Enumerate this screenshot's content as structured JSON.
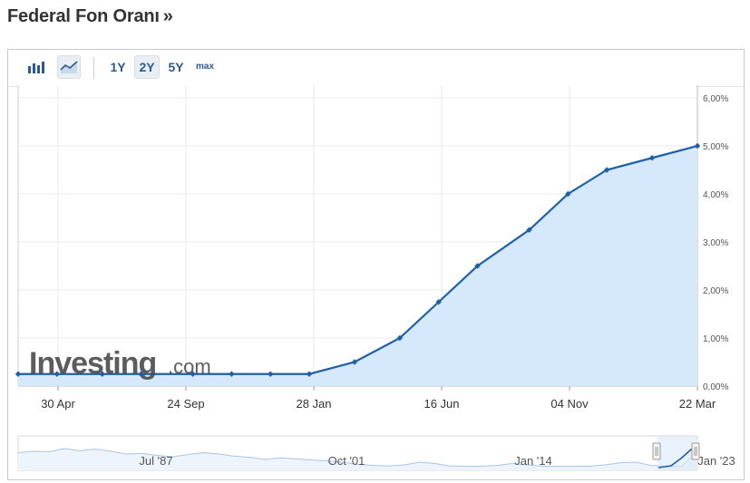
{
  "header": {
    "title": "Federal Fon Oranı",
    "arrow": "»"
  },
  "toolbar": {
    "icons": [
      "bar-chart-icon",
      "area-chart-icon"
    ],
    "ranges": [
      {
        "label": "1Y",
        "active": false
      },
      {
        "label": "2Y",
        "active": true
      },
      {
        "label": "5Y",
        "active": false
      },
      {
        "label": "max",
        "active": false
      }
    ]
  },
  "watermark": {
    "brand": "Investing",
    "suffix": ".com"
  },
  "colors": {
    "line": "#1f5fa6",
    "fill": "#d6e8fb",
    "grid": "#e8e8e8",
    "axis_text": "#555555",
    "navigator_line": "#a9c6e4"
  },
  "chart_data": {
    "type": "area",
    "x_tick_labels": [
      "30 Apr",
      "24 Sep",
      "28 Jan",
      "16 Jun",
      "04 Nov",
      "22 Mar"
    ],
    "y_tick_labels": [
      "0,00%",
      "1,00%",
      "2,00%",
      "3,00%",
      "4,00%",
      "5,00%",
      "6,00%"
    ],
    "ylim": [
      0,
      6
    ],
    "y_axis_side": "right",
    "grid": true,
    "legend": "none",
    "series": [
      {
        "x": [
          "2021-03-17",
          "2021-04-28",
          "2021-06-16",
          "2021-07-28",
          "2021-09-22",
          "2021-11-03",
          "2021-12-15",
          "2022-01-26",
          "2022-03-16",
          "2022-05-04",
          "2022-06-15",
          "2022-07-27",
          "2022-09-21",
          "2022-11-02",
          "2022-12-14",
          "2023-02-01",
          "2023-03-22"
        ],
        "values": [
          0.25,
          0.25,
          0.25,
          0.25,
          0.25,
          0.25,
          0.25,
          0.25,
          0.5,
          1.0,
          1.75,
          2.5,
          3.25,
          4.0,
          4.5,
          4.75,
          5.0
        ]
      }
    ],
    "navigator": {
      "labels": [
        "Jul '87",
        "Oct '01",
        "Jan '14",
        "Jan '23"
      ]
    }
  }
}
